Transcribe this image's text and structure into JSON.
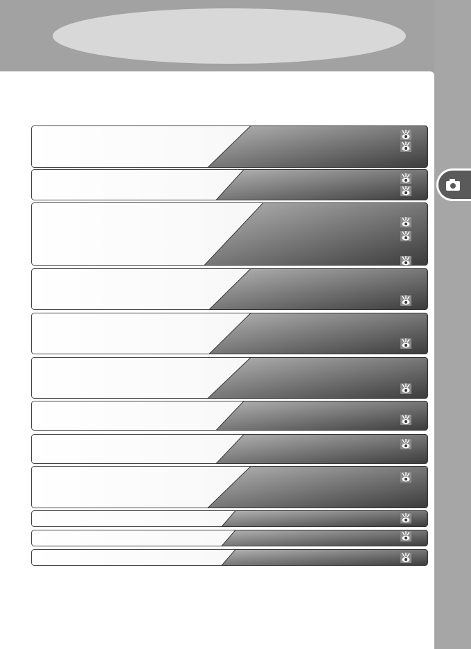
{
  "header": {
    "title": ""
  },
  "side_tab": {
    "icon": "camera-icon"
  },
  "colors": {
    "header": "#a2a2a2",
    "oval": "#d8d8d8",
    "sidebar": "#a6a6a6",
    "tab": "#5a5a5a",
    "gradient_start": "#b4b4b4",
    "gradient_end": "#3c3c3c"
  },
  "reference_icon": "eye-reference-icon",
  "sections": [
    {
      "ref_icons": 2
    },
    {
      "ref_icons": 2
    },
    {
      "ref_icons": 3
    },
    {
      "ref_icons": 1
    },
    {
      "ref_icons": 1
    },
    {
      "ref_icons": 1
    },
    {
      "ref_icons": 1
    },
    {
      "ref_icons": 1
    },
    {
      "ref_icons": 1
    },
    {
      "ref_icons": 1
    },
    {
      "ref_icons": 1
    },
    {
      "ref_icons": 1
    }
  ]
}
